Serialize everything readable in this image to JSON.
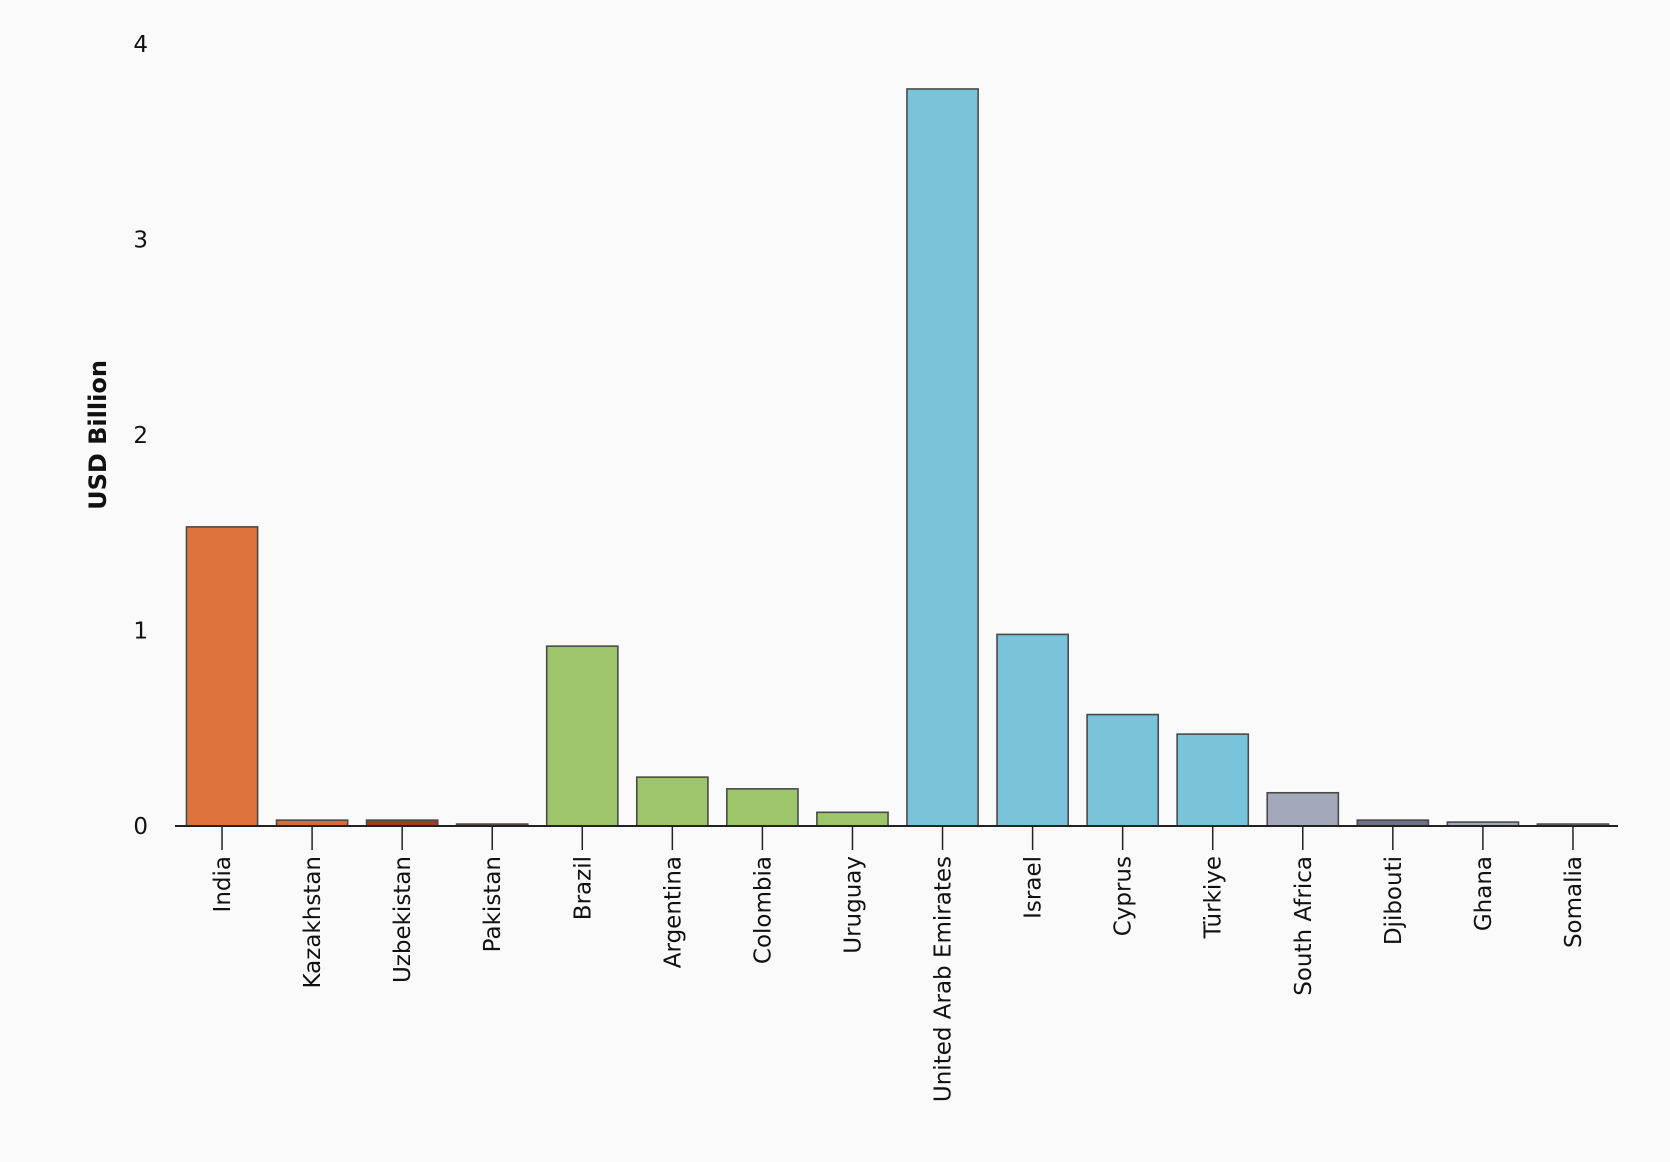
{
  "chart_data": {
    "type": "bar",
    "title": "",
    "xlabel": "",
    "ylabel": "USD Billion",
    "ylim": [
      0,
      4
    ],
    "yticks": [
      0,
      1,
      2,
      3,
      4
    ],
    "grid": false,
    "categories": [
      "India",
      "Kazakhstan",
      "Uzbekistan",
      "Pakistan",
      "Brazil",
      "Argentina",
      "Colombia",
      "Uruguay",
      "United Arab Emirates",
      "Israel",
      "Cyprus",
      "Türkiye",
      "South Africa",
      "Djibouti",
      "Ghana",
      "Somalia"
    ],
    "values": [
      1.53,
      0.03,
      0.03,
      0.01,
      0.92,
      0.25,
      0.19,
      0.07,
      3.77,
      0.98,
      0.57,
      0.47,
      0.17,
      0.03,
      0.02,
      0.01
    ],
    "colors": [
      "#de733e",
      "#d96a35",
      "#a33a26",
      "#8a4a3a",
      "#9dc66a",
      "#9dc66a",
      "#9dc66a",
      "#9dc66a",
      "#79c4da",
      "#79c4da",
      "#79c4da",
      "#79c4da",
      "#a3a9bb",
      "#6f7088",
      "#a3a9bb",
      "#a3a9bb"
    ]
  }
}
